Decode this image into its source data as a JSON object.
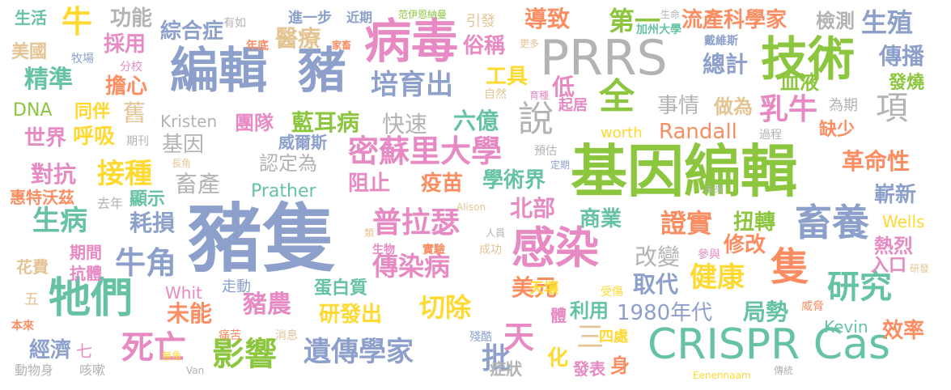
{
  "cloud": {
    "palette": {
      "green": "#8cc63f",
      "teal": "#66c2a5",
      "orange": "#fc8d62",
      "blue": "#8da0cb",
      "pink": "#e78ac3",
      "gold": "#e5c494",
      "yellow": "#ffd92f",
      "gray": "#b3b3b3"
    },
    "words": [
      {
        "text": "豬隻",
        "color": "#8da0cb"
      },
      {
        "text": "基因編輯",
        "color": "#8cc63f"
      },
      {
        "text": "PRRS",
        "color": "#b3b3b3"
      },
      {
        "text": "CRISPR Cas",
        "color": "#66c2a5"
      },
      {
        "text": "編輯",
        "color": "#8da0cb"
      },
      {
        "text": "豬",
        "color": "#8da0cb"
      },
      {
        "text": "病毒",
        "color": "#e78ac3"
      },
      {
        "text": "技術",
        "color": "#8cc63f"
      },
      {
        "text": "感染",
        "color": "#e78ac3"
      },
      {
        "text": "牠們",
        "color": "#66c2a5"
      },
      {
        "text": "畜養",
        "color": "#8da0cb"
      },
      {
        "text": "研究",
        "color": "#66c2a5"
      },
      {
        "text": "隻",
        "color": "#fc8d62"
      },
      {
        "text": "密蘇里大學",
        "color": "#e78ac3"
      },
      {
        "text": "遺傳學家",
        "color": "#8da0cb"
      },
      {
        "text": "普拉瑟",
        "color": "#e78ac3"
      },
      {
        "text": "培育出",
        "color": "#8da0cb"
      },
      {
        "text": "流產",
        "color": "#fc8d62"
      },
      {
        "text": "科學家",
        "color": "#fc8d62"
      },
      {
        "text": "檢測",
        "color": "#b3b3b3"
      },
      {
        "text": "生殖",
        "color": "#8da0cb"
      },
      {
        "text": "傳染病",
        "color": "#e78ac3"
      },
      {
        "text": "切除",
        "color": "#ffd92f"
      },
      {
        "text": "牛角",
        "color": "#8da0cb"
      },
      {
        "text": "死亡",
        "color": "#e78ac3"
      },
      {
        "text": "影響",
        "color": "#8cc63f"
      },
      {
        "text": "健康",
        "color": "#ffd92f"
      },
      {
        "text": "全",
        "color": "#8cc63f"
      },
      {
        "text": "說",
        "color": "#b3b3b3"
      },
      {
        "text": "項",
        "color": "#b3b3b3"
      },
      {
        "text": "乳牛",
        "color": "#e78ac3"
      },
      {
        "text": "天",
        "color": "#e78ac3"
      },
      {
        "text": "三",
        "color": "#e5c494"
      },
      {
        "text": "醫療",
        "color": "#e5c494"
      },
      {
        "text": "牛",
        "color": "#ffd92f"
      },
      {
        "text": "精準",
        "color": "#66c2a5"
      },
      {
        "text": "生病",
        "color": "#66c2a5"
      },
      {
        "text": "接種",
        "color": "#ffd92f"
      },
      {
        "text": "豬農",
        "color": "#e78ac3"
      },
      {
        "text": "證實",
        "color": "#fc8d62"
      },
      {
        "text": "1980年代",
        "color": "#8da0cb"
      },
      {
        "text": "藍耳病",
        "color": "#8cc63f"
      },
      {
        "text": "快速",
        "color": "#b3b3b3"
      },
      {
        "text": "六億",
        "color": "#66c2a5"
      },
      {
        "text": "Randall",
        "color": "#fc8d62"
      },
      {
        "text": "事情",
        "color": "#b3b3b3"
      },
      {
        "text": "做為",
        "color": "#e5c494"
      },
      {
        "text": "疫苗",
        "color": "#fc8d62"
      },
      {
        "text": "學術界",
        "color": "#66c2a5"
      },
      {
        "text": "阻止",
        "color": "#e78ac3"
      },
      {
        "text": "認定為",
        "color": "#b3b3b3"
      },
      {
        "text": "畜產",
        "color": "#b3b3b3"
      },
      {
        "text": "Prather",
        "color": "#66c2a5"
      },
      {
        "text": "北部",
        "color": "#e78ac3"
      },
      {
        "text": "商業",
        "color": "#66c2a5"
      },
      {
        "text": "扭轉",
        "color": "#8cc63f"
      },
      {
        "text": "修改",
        "color": "#fc8d62"
      },
      {
        "text": "改變",
        "color": "#b3b3b3"
      },
      {
        "text": "取代",
        "color": "#8da0cb"
      },
      {
        "text": "美元",
        "color": "#fc8d62"
      },
      {
        "text": "研發出",
        "color": "#ffd92f"
      },
      {
        "text": "蛋白質",
        "color": "#66c2a5"
      },
      {
        "text": "批",
        "color": "#8da0cb"
      },
      {
        "text": "化",
        "color": "#ffd92f"
      },
      {
        "text": "經濟",
        "color": "#8da0cb"
      },
      {
        "text": "未能",
        "color": "#fc8d62"
      },
      {
        "text": "耗損",
        "color": "#8da0cb"
      },
      {
        "text": "對抗",
        "color": "#e78ac3"
      },
      {
        "text": "世界",
        "color": "#e78ac3"
      },
      {
        "text": "呼吸",
        "color": "#ffd92f"
      },
      {
        "text": "擔心",
        "color": "#fc8d62"
      },
      {
        "text": "採用",
        "color": "#e78ac3"
      },
      {
        "text": "功能",
        "color": "#b3b3b3"
      },
      {
        "text": "綜合症",
        "color": "#8da0cb"
      },
      {
        "text": "導致",
        "color": "#fc8d62"
      },
      {
        "text": "第一",
        "color": "#8cc63f"
      },
      {
        "text": "俗稱",
        "color": "#e78ac3"
      },
      {
        "text": "工具",
        "color": "#ffd92f"
      },
      {
        "text": "低",
        "color": "#e78ac3"
      },
      {
        "text": "總計",
        "color": "#8da0cb"
      },
      {
        "text": "傳播",
        "color": "#8da0cb"
      },
      {
        "text": "發燒",
        "color": "#8cc63f"
      },
      {
        "text": "血液",
        "color": "#8cc63f"
      },
      {
        "text": "為期",
        "color": "#b3b3b3"
      },
      {
        "text": "缺少",
        "color": "#fc8d62"
      },
      {
        "text": "革命性",
        "color": "#fc8d62"
      },
      {
        "text": "嶄新",
        "color": "#8da0cb"
      },
      {
        "text": "Wells",
        "color": "#ffd92f"
      },
      {
        "text": "熱烈",
        "color": "#e78ac3"
      },
      {
        "text": "入口",
        "color": "#e78ac3"
      },
      {
        "text": "效率",
        "color": "#fc8d62"
      },
      {
        "text": "Kevin",
        "color": "#66c2a5"
      },
      {
        "text": "局勢",
        "color": "#66c2a5"
      },
      {
        "text": "利用",
        "color": "#66c2a5"
      },
      {
        "text": "天壤",
        "color": "#ffd92f"
      },
      {
        "text": "體",
        "color": "#e78ac3"
      },
      {
        "text": "四處",
        "color": "#ffd92f"
      },
      {
        "text": "發表",
        "color": "#e78ac3"
      },
      {
        "text": "身",
        "color": "#fc8d62"
      },
      {
        "text": "症狀",
        "color": "#b3b3b3"
      },
      {
        "text": "美國",
        "color": "#e5c494"
      },
      {
        "text": "生活",
        "color": "#66c2a5"
      },
      {
        "text": "DNA",
        "color": "#8cc63f"
      },
      {
        "text": "同伴",
        "color": "#ffd92f"
      },
      {
        "text": "舊",
        "color": "#e5c494"
      },
      {
        "text": "基因",
        "color": "#b3b3b3"
      },
      {
        "text": "Kristen",
        "color": "#b3b3b3"
      },
      {
        "text": "團隊",
        "color": "#e78ac3"
      },
      {
        "text": "威爾斯",
        "color": "#8da0cb"
      },
      {
        "text": "惠特沃茲",
        "color": "#fc8d62"
      },
      {
        "text": "去年",
        "color": "#b3b3b3"
      },
      {
        "text": "顯示",
        "color": "#66c2a5"
      },
      {
        "text": "花費",
        "color": "#e5c494"
      },
      {
        "text": "期間",
        "color": "#e78ac3"
      },
      {
        "text": "抗體",
        "color": "#e78ac3"
      },
      {
        "text": "Whit",
        "color": "#e78ac3"
      },
      {
        "text": "走動",
        "color": "#8da0cb"
      },
      {
        "text": "五",
        "color": "#e5c494"
      },
      {
        "text": "本來",
        "color": "#fc8d62"
      },
      {
        "text": "七",
        "color": "#e78ac3"
      },
      {
        "text": "動物身",
        "color": "#b3b3b3"
      },
      {
        "text": "咳嗽",
        "color": "#b3b3b3"
      },
      {
        "text": "無角",
        "color": "#ffd92f"
      },
      {
        "text": "Van",
        "color": "#b3b3b3"
      },
      {
        "text": "痛苦",
        "color": "#fc8d62"
      },
      {
        "text": "消息",
        "color": "#e5c494"
      },
      {
        "text": "殘酷",
        "color": "#8da0cb"
      },
      {
        "text": "受傷",
        "color": "#ffd92f"
      },
      {
        "text": "參與",
        "color": "#e78ac3"
      },
      {
        "text": "研發",
        "color": "#e5c494"
      },
      {
        "text": "威脅",
        "color": "#fc8d62"
      },
      {
        "text": "傳統",
        "color": "#b3b3b3"
      },
      {
        "text": "Eenennaam",
        "color": "#ffd92f"
      },
      {
        "text": "有如",
        "color": "#b3b3b3"
      },
      {
        "text": "年底",
        "color": "#fc8d62"
      },
      {
        "text": "進一步",
        "color": "#8da0cb"
      },
      {
        "text": "家畜",
        "color": "#fc8d62"
      },
      {
        "text": "近期",
        "color": "#8da0cb"
      },
      {
        "text": "范伊恩納曼",
        "color": "#8cc63f"
      },
      {
        "text": "引發",
        "color": "#e5c494"
      },
      {
        "text": "更多",
        "color": "#e5c494"
      },
      {
        "text": "生命",
        "color": "#b3b3b3"
      },
      {
        "text": "加州大學",
        "color": "#66c2a5"
      },
      {
        "text": "戴維斯",
        "color": "#8da0cb"
      },
      {
        "text": "牧場",
        "color": "#8da0cb"
      },
      {
        "text": "分校",
        "color": "#e78ac3"
      },
      {
        "text": "自然",
        "color": "#e5c494"
      },
      {
        "text": "育種",
        "color": "#e78ac3"
      },
      {
        "text": "起居",
        "color": "#e78ac3"
      },
      {
        "text": "worth",
        "color": "#ffd92f"
      },
      {
        "text": "期刊",
        "color": "#b3b3b3"
      },
      {
        "text": "長角",
        "color": "#e5c494"
      },
      {
        "text": "預估",
        "color": "#b3b3b3"
      },
      {
        "text": "定期",
        "color": "#8da0cb"
      },
      {
        "text": "過程",
        "color": "#b3b3b3"
      },
      {
        "text": "未來",
        "color": "#b3b3b3"
      },
      {
        "text": "Alison",
        "color": "#e5c494"
      },
      {
        "text": "人員",
        "color": "#b3b3b3"
      },
      {
        "text": "類",
        "color": "#e5c494"
      },
      {
        "text": "生物",
        "color": "#e78ac3"
      },
      {
        "text": "實驗",
        "color": "#fc8d62"
      },
      {
        "text": "成功",
        "color": "#e5c494"
      }
    ]
  }
}
